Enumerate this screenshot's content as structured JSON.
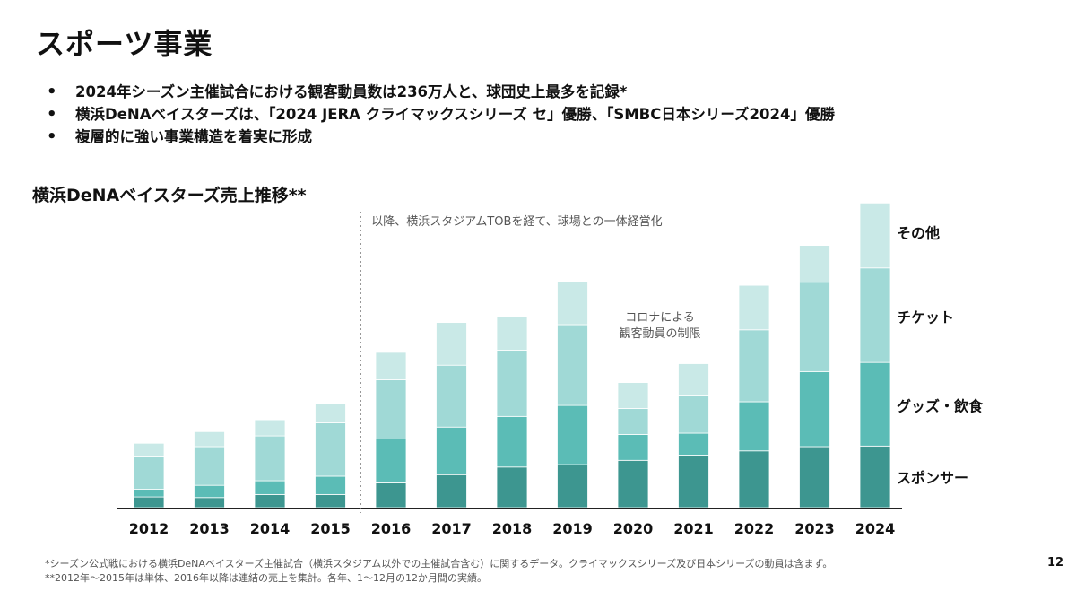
{
  "slide": {
    "title": "スポーツ事業",
    "bullets": [
      "2024年シーズン主催試合における観客動員数は236万人と、球団史上最多を記録*",
      "横浜DeNAベイスターズは、「2024 JERA クライマックスシリーズ セ」優勝、「SMBC日本シリーズ2024」優勝",
      "複層的に強い事業構造を着実に形成"
    ],
    "footnotes": [
      "*シーズン公式戦における横浜DeNAベイスターズ主催試合（横浜スタジアム以外での主催試合含む）に関するデータ。クライマックスシリーズ及び日本シリーズの動員は含まず。",
      "**2012年～2015年は単体、2016年以降は連結の売上を集計。各年、1～12月の12か月間の実績。"
    ],
    "page_number": "12"
  },
  "chart_data": {
    "type": "bar",
    "stacked": true,
    "title": "横浜DeNAベイスターズ売上推移**",
    "xlabel": "",
    "ylabel": "",
    "y_axis_shown": false,
    "ylim": [
      0,
      100
    ],
    "categories": [
      "2012",
      "2013",
      "2014",
      "2015",
      "2016",
      "2017",
      "2018",
      "2019",
      "2020",
      "2021",
      "2022",
      "2023",
      "2024"
    ],
    "series": [
      {
        "name": "スポンサー",
        "color": "#3d9690",
        "values": [
          3.5,
          3.3,
          4.3,
          4.3,
          8.1,
          10.8,
          13.3,
          14.1,
          15.5,
          17.2,
          18.6,
          20.0,
          20.2
        ]
      },
      {
        "name": "グッズ・飲食",
        "color": "#5bbcb6",
        "values": [
          2.5,
          4.0,
          4.5,
          6.0,
          14.4,
          15.6,
          16.6,
          19.4,
          8.5,
          7.2,
          16.1,
          24.6,
          27.4
        ]
      },
      {
        "name": "チケット",
        "color": "#a0d9d6",
        "values": [
          10.6,
          12.7,
          14.7,
          17.5,
          19.4,
          20.3,
          21.7,
          26.5,
          8.5,
          12.2,
          23.6,
          29.3,
          31.0
        ]
      },
      {
        "name": "その他",
        "color": "#c9e9e7",
        "values": [
          4.5,
          4.9,
          5.3,
          6.3,
          9.0,
          14.0,
          10.9,
          14.1,
          8.5,
          10.6,
          14.6,
          12.1,
          21.3
        ]
      }
    ],
    "legend_position": "right",
    "legend_order": [
      "その他",
      "チケット",
      "グッズ・飲食",
      "スポンサー"
    ],
    "annotations": [
      {
        "text": "以降、横浜スタジアムTOBを経て、球場との一体経営化",
        "after_category": "2015"
      },
      {
        "text": "コロナによる\n観客動員の制限",
        "category": "2020"
      }
    ]
  }
}
